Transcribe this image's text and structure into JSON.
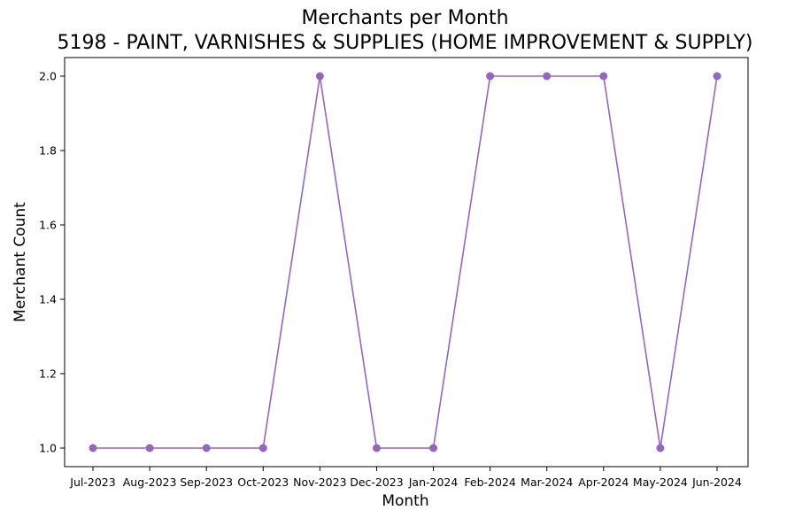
{
  "chart_data": {
    "type": "line",
    "title": "Merchants per Month",
    "subtitle": "5198 - PAINT, VARNISHES & SUPPLIES (HOME IMPROVEMENT & SUPPLY)",
    "xlabel": "Month",
    "ylabel": "Merchant Count",
    "categories": [
      "Jul-2023",
      "Aug-2023",
      "Sep-2023",
      "Oct-2023",
      "Nov-2023",
      "Dec-2023",
      "Jan-2024",
      "Feb-2024",
      "Mar-2024",
      "Apr-2024",
      "May-2024",
      "Jun-2024"
    ],
    "series": [
      {
        "values": [
          1,
          1,
          1,
          1,
          2,
          1,
          1,
          2,
          2,
          2,
          1,
          2
        ],
        "color": "#9467bd",
        "marker": "circle"
      }
    ],
    "yticks": [
      "1.0",
      "1.2",
      "1.4",
      "1.6",
      "1.8",
      "2.0"
    ],
    "ylim": [
      0.95,
      2.05
    ],
    "grid": false,
    "legend": "none"
  }
}
